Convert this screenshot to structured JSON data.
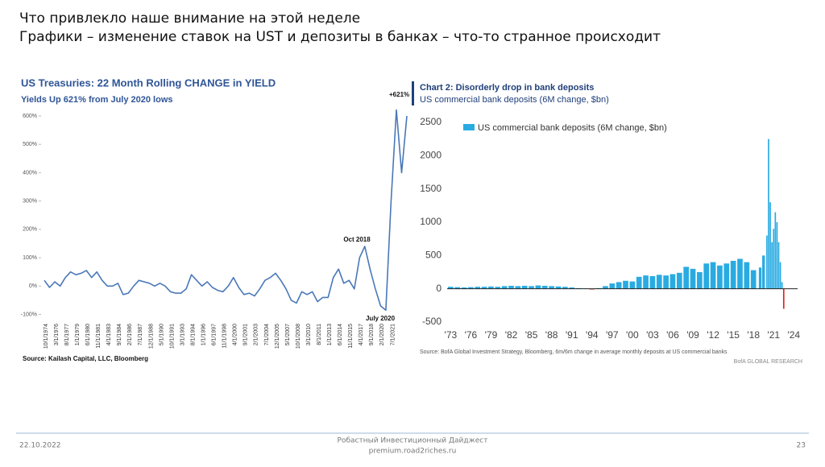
{
  "header": {
    "line1": "Что привлекло наше внимание на этой неделе",
    "line2": "Графики – изменение ставок на UST и депозиты в банках – что-то странное происходит"
  },
  "footer": {
    "date": "22.10.2022",
    "name": "Робастный Инвестиционный Дайджест",
    "site": "premium.road2riches.ru",
    "page": "23"
  },
  "chart_data": [
    {
      "type": "line",
      "title": "US Treasuries: 22 Month Rolling CHANGE in YIELD",
      "subtitle": "Yields Up 621% from July 2020 lows",
      "categories": [
        "10/1/1974",
        null,
        "3/1/1976",
        null,
        "8/1/1977",
        null,
        "1/1/1979",
        null,
        "6/1/1980",
        null,
        "11/1/1981",
        null,
        "4/1/1983",
        null,
        "9/1/1984",
        null,
        "2/1/1986",
        null,
        "7/1/1987",
        null,
        "12/1/1988",
        null,
        "5/1/1990",
        null,
        "10/1/1991",
        null,
        "3/1/1993",
        null,
        "8/1/1994",
        null,
        "1/1/1996",
        null,
        "6/1/1997",
        null,
        "11/1/1998",
        null,
        "4/1/2000",
        null,
        "9/1/2001",
        null,
        "2/1/2003",
        null,
        "7/1/2004",
        null,
        "12/1/2005",
        null,
        "5/1/2007",
        null,
        "10/1/2008",
        null,
        "3/1/2010",
        null,
        "8/1/2011",
        null,
        "1/1/2013",
        null,
        "6/1/2014",
        null,
        "11/1/2015",
        null,
        "4/1/2017",
        null,
        "9/1/2018",
        null,
        "2/1/2020",
        null,
        "7/1/2021",
        null,
        null,
        null
      ],
      "values": [
        20,
        -5,
        15,
        0,
        30,
        50,
        40,
        45,
        55,
        30,
        50,
        20,
        0,
        0,
        10,
        -30,
        -25,
        0,
        20,
        15,
        10,
        0,
        10,
        0,
        -20,
        -25,
        -25,
        -10,
        40,
        20,
        0,
        15,
        -5,
        -15,
        -20,
        0,
        30,
        -5,
        -30,
        -25,
        -35,
        -10,
        20,
        30,
        45,
        20,
        -10,
        -50,
        -60,
        -20,
        -30,
        -20,
        -55,
        -40,
        -40,
        30,
        60,
        10,
        20,
        -10,
        100,
        140,
        60,
        -10,
        -70,
        -85,
        300,
        621,
        400,
        600
      ],
      "color": "#4a78b8",
      "ylim": [
        -110,
        620
      ],
      "yticks": [
        {
          "value": -100,
          "label": "-100%"
        },
        {
          "value": 0,
          "label": "0%"
        },
        {
          "value": 100,
          "label": "100%"
        },
        {
          "value": 200,
          "label": "200%"
        },
        {
          "value": 300,
          "label": "300%"
        },
        {
          "value": 400,
          "label": "400%"
        },
        {
          "value": 500,
          "label": "500%"
        },
        {
          "value": 600,
          "label": "600%"
        }
      ],
      "annotations": [
        "+621%",
        "Oct 2018",
        "July 2020"
      ],
      "source": "Source: Kailash Capital, LLC, Bloomberg"
    },
    {
      "type": "bar",
      "title": "Chart 2: Disorderly drop in bank deposits",
      "subtitle": "US commercial bank deposits (6M change, $bn)",
      "x": [
        1973,
        1974,
        1975,
        1976,
        1977,
        1978,
        1979,
        1980,
        1981,
        1982,
        1983,
        1984,
        1985,
        1986,
        1987,
        1988,
        1989,
        1990,
        1991,
        1992,
        1993,
        1994,
        1995,
        1996,
        1997,
        1998,
        1999,
        2000,
        2001,
        2002,
        2003,
        2004,
        2005,
        2006,
        2007,
        2008,
        2009,
        2010,
        2011,
        2012,
        2013,
        2014,
        2015,
        2016,
        2017,
        2018,
        2019,
        2019.5,
        2020,
        2020.25,
        2020.5,
        2020.75,
        2021,
        2021.25,
        2021.5,
        2021.75,
        2022,
        2022.25,
        2022.5
      ],
      "series": [
        {
          "name": "US commercial bank deposits (6M change, $bn)",
          "color": "#29abe2",
          "values": [
            30,
            25,
            20,
            25,
            30,
            30,
            35,
            30,
            40,
            45,
            40,
            45,
            40,
            50,
            45,
            40,
            35,
            30,
            20,
            10,
            5,
            -10,
            10,
            40,
            80,
            100,
            120,
            110,
            180,
            200,
            190,
            210,
            200,
            220,
            240,
            330,
            300,
            250,
            380,
            400,
            350,
            380,
            420,
            450,
            400,
            280,
            320,
            500,
            800,
            2250,
            1300,
            700,
            900,
            1150,
            1000,
            700,
            400,
            100,
            -300
          ]
        }
      ],
      "negative_color": "#e0201c",
      "xlim": [
        1972,
        2026
      ],
      "xticks": [
        {
          "value": 1973,
          "label": "'73"
        },
        {
          "value": 1976,
          "label": "'76"
        },
        {
          "value": 1979,
          "label": "'79"
        },
        {
          "value": 1982,
          "label": "'82"
        },
        {
          "value": 1985,
          "label": "'85"
        },
        {
          "value": 1988,
          "label": "'88"
        },
        {
          "value": 1991,
          "label": "'91"
        },
        {
          "value": 1994,
          "label": "'94"
        },
        {
          "value": 1997,
          "label": "'97"
        },
        {
          "value": 2000,
          "label": "'00"
        },
        {
          "value": 2003,
          "label": "'03"
        },
        {
          "value": 2006,
          "label": "'06"
        },
        {
          "value": 2009,
          "label": "'09"
        },
        {
          "value": 2012,
          "label": "'12"
        },
        {
          "value": 2015,
          "label": "'15"
        },
        {
          "value": 2018,
          "label": "'18"
        },
        {
          "value": 2021,
          "label": "'21"
        },
        {
          "value": 2024,
          "label": "'24"
        }
      ],
      "ylim": [
        -500,
        2500
      ],
      "yticks": [
        -500,
        0,
        500,
        1000,
        1500,
        2000,
        2500
      ],
      "source": "Source: BofA Global Investment Strategy, Bloomberg, 6m/6m change in average monthly deposits at US commercial banks",
      "credit": "BofA GLOBAL RESEARCH"
    }
  ]
}
